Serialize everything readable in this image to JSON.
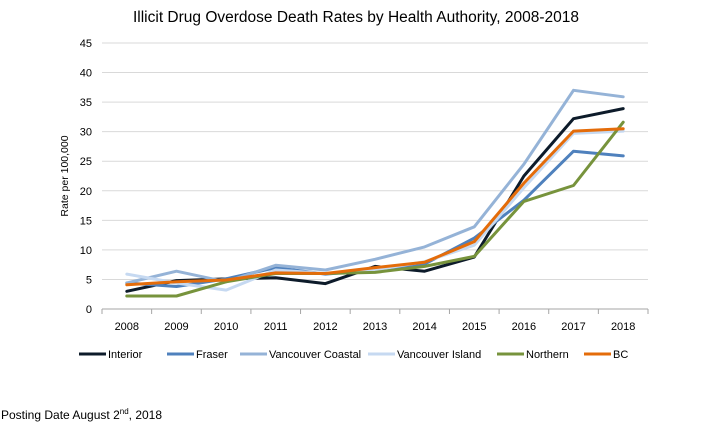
{
  "chart_data": {
    "type": "line",
    "title": "Illicit Drug Overdose Death Rates by Health Authority, 2008-2018",
    "xlabel": "",
    "ylabel": "Rate per 100,000",
    "ylim": [
      0,
      45
    ],
    "yticks": [
      0,
      5,
      10,
      15,
      20,
      25,
      30,
      35,
      40,
      45
    ],
    "categories": [
      "2008",
      "2009",
      "2010",
      "2011",
      "2012",
      "2013",
      "2014",
      "2015",
      "2016",
      "2017",
      "2018"
    ],
    "grid": true,
    "legend_position": "bottom",
    "series": [
      {
        "name": "Interior",
        "color": "#0d1b2a",
        "values": [
          3.0,
          4.8,
          5.1,
          5.3,
          4.3,
          7.2,
          6.4,
          8.8,
          22.5,
          32.2,
          33.9
        ]
      },
      {
        "name": "Fraser",
        "color": "#4f81bd",
        "values": [
          4.4,
          3.8,
          5.1,
          7.0,
          5.9,
          6.6,
          7.6,
          12.0,
          18.4,
          26.7,
          25.9
        ]
      },
      {
        "name": "Vancouver Coastal",
        "color": "#95b3d7",
        "values": [
          4.4,
          6.4,
          4.6,
          7.4,
          6.6,
          8.4,
          10.5,
          13.9,
          24.5,
          37.0,
          35.9
        ]
      },
      {
        "name": "Vancouver Island",
        "color": "#c6d9f1",
        "values": [
          5.9,
          4.4,
          3.2,
          6.6,
          6.0,
          6.6,
          8.0,
          10.8,
          20.5,
          29.7,
          30.1
        ]
      },
      {
        "name": "Northern",
        "color": "#77933c",
        "values": [
          2.2,
          2.2,
          4.6,
          6.0,
          6.0,
          6.2,
          7.2,
          8.9,
          18.2,
          20.9,
          31.6
        ]
      },
      {
        "name": "BC",
        "color": "#e46c0a",
        "values": [
          4.1,
          4.6,
          4.9,
          6.1,
          6.0,
          7.0,
          7.9,
          11.4,
          21.3,
          30.1,
          30.5
        ]
      }
    ]
  },
  "footer": {
    "posting_prefix": "Posting Date August 2",
    "posting_sup": "nd",
    "posting_suffix": ", 2018"
  }
}
